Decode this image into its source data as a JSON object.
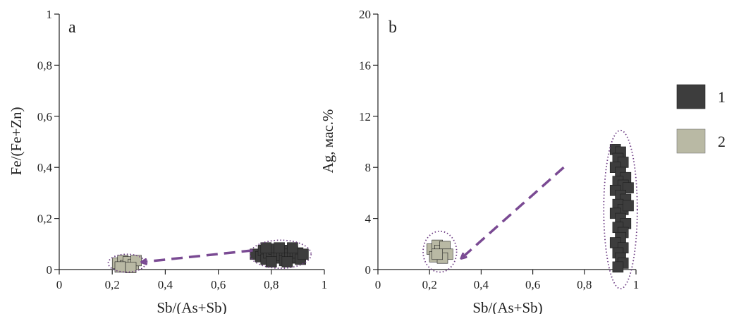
{
  "chart_data": [
    {
      "type": "scatter",
      "panel_label": "a",
      "xlabel": "Sb/(As+Sb)",
      "ylabel": "Fe/(Fe+Zn)",
      "xlim": [
        0,
        1
      ],
      "ylim": [
        0,
        1
      ],
      "x_ticks": [
        0,
        0.2,
        0.4,
        0.6,
        0.8,
        1
      ],
      "x_tick_labels": [
        "0",
        "0,2",
        "0,4",
        "0,6",
        "0,8",
        "1"
      ],
      "y_ticks": [
        0,
        0.2,
        0.4,
        0.6,
        0.8,
        1
      ],
      "y_tick_labels": [
        "0",
        "0,2",
        "0,4",
        "0,6",
        "0,8",
        "1"
      ],
      "grid": false,
      "series": [
        {
          "legend_key": "1",
          "color": "#3d3d3d",
          "points": [
            [
              0.74,
              0.06
            ],
            [
              0.76,
              0.05
            ],
            [
              0.77,
              0.075
            ],
            [
              0.78,
              0.04
            ],
            [
              0.79,
              0.065
            ],
            [
              0.8,
              0.05
            ],
            [
              0.81,
              0.08
            ],
            [
              0.82,
              0.045
            ],
            [
              0.83,
              0.07
            ],
            [
              0.84,
              0.055
            ],
            [
              0.85,
              0.035
            ],
            [
              0.85,
              0.075
            ],
            [
              0.86,
              0.06
            ],
            [
              0.87,
              0.045
            ],
            [
              0.88,
              0.07
            ],
            [
              0.89,
              0.05
            ],
            [
              0.9,
              0.065
            ],
            [
              0.91,
              0.04
            ],
            [
              0.78,
              0.085
            ],
            [
              0.83,
              0.085
            ],
            [
              0.88,
              0.085
            ],
            [
              0.8,
              0.03
            ],
            [
              0.86,
              0.03
            ],
            [
              0.92,
              0.06
            ]
          ]
        },
        {
          "legend_key": "2",
          "color": "#b9b9a4",
          "points": [
            [
              0.22,
              0.025
            ],
            [
              0.24,
              0.035
            ],
            [
              0.25,
              0.015
            ],
            [
              0.26,
              0.03
            ],
            [
              0.28,
              0.02
            ],
            [
              0.29,
              0.035
            ],
            [
              0.23,
              0.01
            ],
            [
              0.27,
              0.008
            ]
          ]
        }
      ],
      "trend_arrow": {
        "from": [
          0.73,
          0.075
        ],
        "to": [
          0.32,
          0.03
        ]
      },
      "clusters": [
        {
          "cx": 0.835,
          "cy": 0.06,
          "rx": 0.115,
          "ry": 0.055
        },
        {
          "cx": 0.255,
          "cy": 0.025,
          "rx": 0.07,
          "ry": 0.035
        }
      ]
    },
    {
      "type": "scatter",
      "panel_label": "b",
      "xlabel": "Sb/(As+Sb)",
      "ylabel": "Ag, мас.%",
      "xlim": [
        0,
        1
      ],
      "ylim": [
        0,
        20
      ],
      "x_ticks": [
        0,
        0.2,
        0.4,
        0.6,
        0.8,
        1
      ],
      "x_tick_labels": [
        "0",
        "0,2",
        "0,4",
        "0,6",
        "0,8",
        "1"
      ],
      "y_ticks": [
        0,
        4,
        8,
        12,
        16,
        20
      ],
      "y_tick_labels": [
        "0",
        "4",
        "8",
        "12",
        "16",
        "20"
      ],
      "grid": false,
      "series": [
        {
          "legend_key": "1",
          "color": "#3d3d3d",
          "points": [
            [
              0.92,
              9.4
            ],
            [
              0.94,
              9.2
            ],
            [
              0.93,
              8.7
            ],
            [
              0.95,
              8.4
            ],
            [
              0.92,
              8.0
            ],
            [
              0.94,
              7.6
            ],
            [
              0.96,
              7.2
            ],
            [
              0.93,
              6.9
            ],
            [
              0.95,
              6.6
            ],
            [
              0.97,
              6.4
            ],
            [
              0.92,
              6.2
            ],
            [
              0.94,
              5.8
            ],
            [
              0.96,
              5.5
            ],
            [
              0.93,
              5.1
            ],
            [
              0.95,
              4.7
            ],
            [
              0.92,
              4.4
            ],
            [
              0.94,
              4.0
            ],
            [
              0.96,
              3.6
            ],
            [
              0.93,
              3.3
            ],
            [
              0.95,
              2.9
            ],
            [
              0.94,
              2.5
            ],
            [
              0.92,
              2.1
            ],
            [
              0.95,
              1.7
            ],
            [
              0.93,
              1.3
            ],
            [
              0.94,
              0.9
            ],
            [
              0.95,
              0.5
            ],
            [
              0.93,
              0.2
            ],
            [
              0.97,
              5.0
            ]
          ]
        },
        {
          "legend_key": "2",
          "color": "#b9b9a4",
          "points": [
            [
              0.21,
              1.6
            ],
            [
              0.23,
              1.9
            ],
            [
              0.25,
              1.3
            ],
            [
              0.22,
              1.0
            ],
            [
              0.24,
              1.5
            ],
            [
              0.26,
              1.8
            ],
            [
              0.27,
              1.2
            ],
            [
              0.25,
              0.9
            ],
            [
              0.23,
              1.2
            ]
          ]
        }
      ],
      "trend_arrow": {
        "from": [
          0.72,
          8.0
        ],
        "to": [
          0.33,
          1.0
        ]
      },
      "clusters": [
        {
          "cx": 0.94,
          "cy": 4.7,
          "rx": 0.065,
          "ry": 6.2
        },
        {
          "cx": 0.24,
          "cy": 1.4,
          "rx": 0.065,
          "ry": 1.6
        }
      ]
    }
  ],
  "legend": [
    {
      "label": "1",
      "color": "#3d3d3d"
    },
    {
      "label": "2",
      "color": "#b9b9a4"
    }
  ],
  "colors": {
    "ellipse": "#6b3a82",
    "arrow": "#7a4a93",
    "axis": "#222222"
  }
}
